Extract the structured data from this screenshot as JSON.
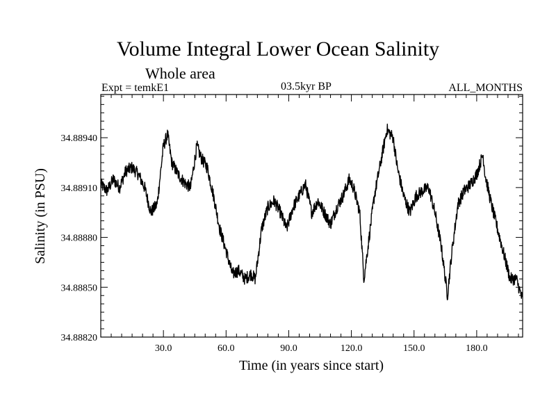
{
  "chart_data": {
    "type": "line",
    "title": "Volume Integral Lower Ocean Salinity",
    "subtitle": "Whole area",
    "experiment": "Expt = temkE1",
    "period": "03.5kyr BP",
    "months": "ALL_MONTHS",
    "xlabel": "Time (in years since start)",
    "ylabel": "Salinity (in PSU)",
    "xlim": [
      0,
      202
    ],
    "ylim": [
      34.8882,
      34.88966
    ],
    "xticks": [
      30,
      60,
      90,
      120,
      150,
      180
    ],
    "xtick_labels": [
      "30.0",
      "60.0",
      "90.0",
      "120.0",
      "150.0",
      "180.0"
    ],
    "yticks": [
      34.8882,
      34.8885,
      34.8888,
      34.8891,
      34.8894
    ],
    "ytick_labels": [
      "34.88820",
      "34.88850",
      "34.88880",
      "34.88910",
      "34.88940"
    ],
    "grid": false,
    "series": [
      {
        "name": "salinity",
        "x": [
          0,
          3,
          6,
          9,
          12,
          15,
          18,
          21,
          24,
          27,
          30,
          32,
          34,
          37,
          40,
          43,
          46,
          48,
          51,
          54,
          57,
          60,
          63,
          66,
          69,
          72,
          74,
          77,
          80,
          83,
          86,
          89,
          92,
          95,
          98,
          101,
          104,
          107,
          110,
          113,
          116,
          119,
          121,
          124,
          126,
          128,
          131,
          134,
          137,
          140,
          142,
          145,
          148,
          151,
          154,
          157,
          160,
          163,
          166,
          168,
          171,
          174,
          177,
          180,
          183,
          184,
          187,
          190,
          193,
          196,
          199,
          202
        ],
        "y": [
          34.88912,
          34.88908,
          34.88915,
          34.8891,
          34.8892,
          34.88922,
          34.88918,
          34.8891,
          34.88895,
          34.889,
          34.88935,
          34.88942,
          34.88925,
          34.88918,
          34.88913,
          34.8891,
          34.88935,
          34.88928,
          34.88922,
          34.88905,
          34.88885,
          34.88872,
          34.88858,
          34.8886,
          34.88855,
          34.88858,
          34.88855,
          34.88885,
          34.88898,
          34.88902,
          34.88895,
          34.88885,
          34.88898,
          34.88905,
          34.88912,
          34.88895,
          34.88902,
          34.88895,
          34.88888,
          34.88898,
          34.88905,
          34.88915,
          34.8891,
          34.88895,
          34.88855,
          34.88875,
          34.88905,
          34.88925,
          34.88945,
          34.8894,
          34.88922,
          34.88905,
          34.88895,
          34.88905,
          34.88908,
          34.8891,
          34.88895,
          34.88875,
          34.88845,
          34.8887,
          34.889,
          34.88908,
          34.88912,
          34.88918,
          34.8893,
          34.88918,
          34.889,
          34.88885,
          34.8887,
          34.88855,
          34.88855,
          34.88842
        ]
      }
    ]
  }
}
